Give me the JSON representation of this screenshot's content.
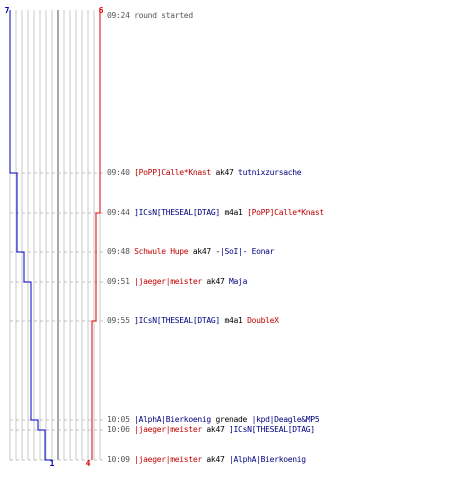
{
  "colors": {
    "team_blue": "#0000c0",
    "team_red": "#e00000",
    "grid": "#c8c8c8",
    "center": "#808080",
    "dash": "#c0c0c0"
  },
  "score": {
    "blue_start": "7",
    "red_start": "6",
    "blue_end": "1",
    "red_end": "4"
  },
  "events": [
    {
      "time": "09:24",
      "killer": "",
      "killer_team": "",
      "weapon": "round started",
      "victim": "",
      "victim_team": ""
    },
    {
      "time": "09:40",
      "killer": "[PoPP]Calle*Knast",
      "killer_team": "red",
      "weapon": "ak47",
      "victim": "tutnixzursache",
      "victim_team": "blue"
    },
    {
      "time": "09:44",
      "killer": "]ICsN[THESEAL[DTAG]",
      "killer_team": "blue",
      "weapon": "m4a1",
      "victim": "[PoPP]Calle*Knast",
      "victim_team": "red"
    },
    {
      "time": "09:48",
      "killer": "Schwule Hupe",
      "killer_team": "red",
      "weapon": "ak47",
      "victim": "-|SoI|- Eonar",
      "victim_team": "blue"
    },
    {
      "time": "09:51",
      "killer": "|jaeger|meister",
      "killer_team": "red",
      "weapon": "ak47",
      "victim": "Maja",
      "victim_team": "blue"
    },
    {
      "time": "09:55",
      "killer": "]ICsN[THESEAL[DTAG]",
      "killer_team": "blue",
      "weapon": "m4a1",
      "victim": "DoubleX",
      "victim_team": "red"
    },
    {
      "time": "10:05",
      "killer": "|AlphA|Bierkoenig",
      "killer_team": "blue",
      "weapon": "grenade",
      "victim": "|kpd|Deagle&MP5",
      "victim_team": "blue"
    },
    {
      "time": "10:06",
      "killer": "|jaeger|meister",
      "killer_team": "red",
      "weapon": "ak47",
      "victim": "]ICsN[THESEAL[DTAG]",
      "victim_team": "blue"
    },
    {
      "time": "10:09",
      "killer": "|jaeger|meister",
      "killer_team": "red",
      "weapon": "ak47",
      "victim": "|AlphA|Bierkoenig",
      "victim_team": "blue"
    }
  ]
}
